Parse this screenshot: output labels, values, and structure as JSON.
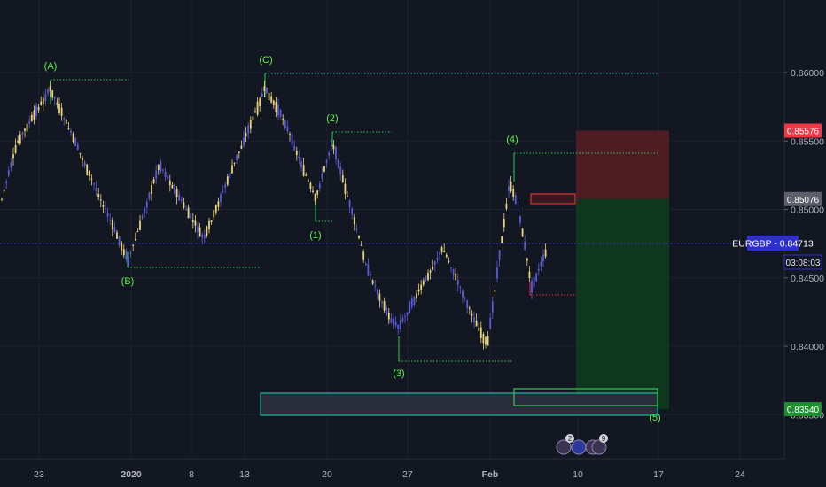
{
  "chart_data": {
    "type": "candlestick",
    "symbol": "EURGBP",
    "current_price": "0.84713",
    "countdown": "03:08:03",
    "y_ticks": [
      "0.86000",
      "0.85500",
      "0.85000",
      "0.84500",
      "0.84000",
      "0.83500"
    ],
    "x_ticks": [
      "23",
      "2020",
      "8",
      "13",
      "20",
      "27",
      "Feb",
      "10",
      "17",
      "24"
    ],
    "ylim": [
      0.8318,
      0.8689
    ],
    "price_tags": [
      {
        "label": "0.85576",
        "value": 0.85576,
        "color": "#f23645"
      },
      {
        "label": "0.85076",
        "value": 0.85076,
        "color": "#5d606b"
      },
      {
        "label": "0.83540",
        "value": 0.8354,
        "color": "#1e8f2e"
      }
    ],
    "wave_labels": [
      {
        "text": "(A)",
        "price": 0.8593
      },
      {
        "text": "(B)",
        "price": 0.8455
      },
      {
        "text": "(C)",
        "price": 0.8603
      },
      {
        "text": "(1)",
        "price": 0.8476
      },
      {
        "text": "(2)",
        "price": 0.8559
      },
      {
        "text": "(3)",
        "price": 0.8378
      },
      {
        "text": "(4)",
        "price": 0.8545
      },
      {
        "text": "(5)",
        "price": 0.833
      }
    ],
    "trade_setup": {
      "entry": 0.85076,
      "stop": 0.85576,
      "target": 0.8354
    },
    "event_badges": [
      "2",
      "9"
    ],
    "colors": {
      "background": "#131722",
      "candle_up": "#5b5bd6",
      "candle_down": "#e8d27a",
      "wave_label": "#5ef04a",
      "price_line": "#2f2fd0",
      "symbol_tag": "#2f2fd0",
      "stop_zone": "#5a1d24",
      "target_zone": "#0f3b1d"
    }
  }
}
